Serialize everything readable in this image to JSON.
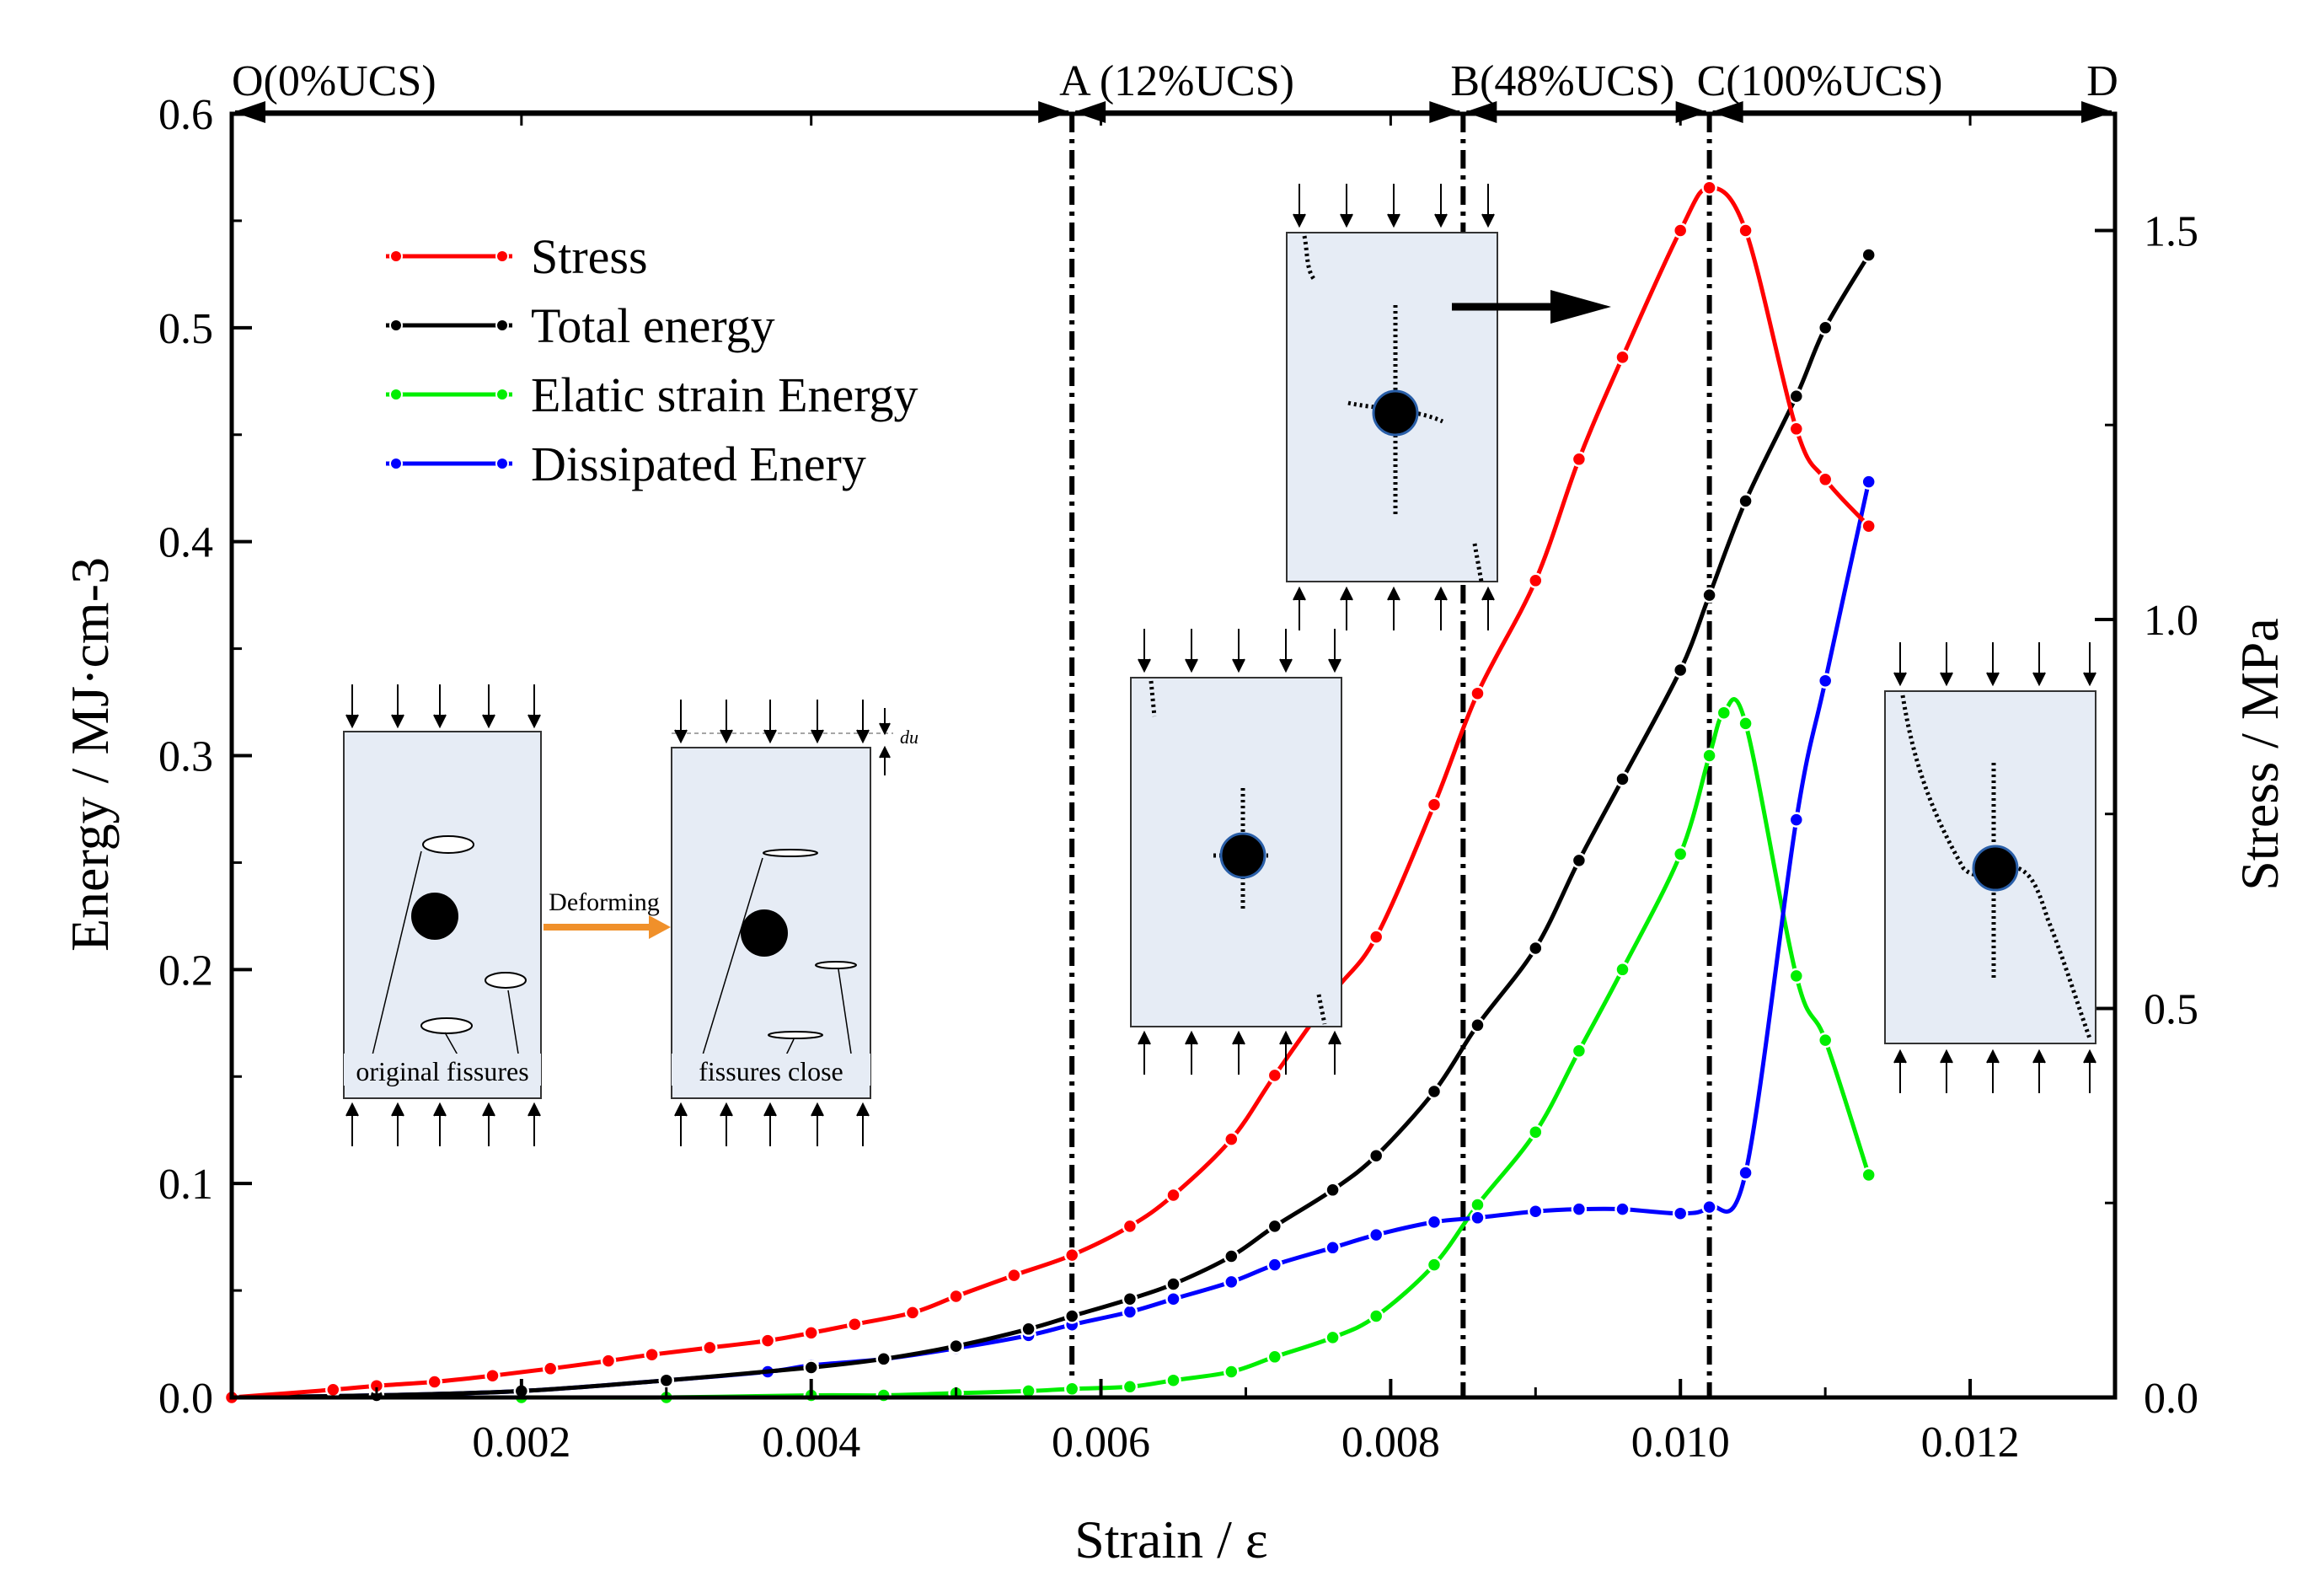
{
  "chart_data": {
    "type": "line",
    "xlabel": "Strain / ε",
    "ylabel_left": "Energy / MJ·cm-3",
    "ylabel_right": "Stress / MPa",
    "xlim": [
      0,
      0.013
    ],
    "ylim_left": [
      0,
      0.6
    ],
    "ylim_right": [
      0,
      1.65
    ],
    "x_ticks": [
      "0.002",
      "0.004",
      "0.006",
      "0.008",
      "0.010",
      "0.012"
    ],
    "y_left_ticks": [
      "0.0",
      "0.1",
      "0.2",
      "0.3",
      "0.4",
      "0.5",
      "0.6"
    ],
    "y_right_ticks": [
      "0.0",
      "0.5",
      "1.0",
      "1.5"
    ],
    "grid": false,
    "legend_location": "upper-left",
    "stages": [
      {
        "label": "O(0%UCS)",
        "x": 0
      },
      {
        "label": "A (12%UCS)",
        "x": 0.0058
      },
      {
        "label": "B(48%UCS)",
        "x": 0.0085
      },
      {
        "label": "C(100%UCS)",
        "x": 0.0102
      },
      {
        "label": "D",
        "x": 0.013
      }
    ],
    "series": [
      {
        "name": "Stress",
        "axis": "right",
        "color": "#ff0000",
        "x": [
          0.0,
          0.0007,
          0.001,
          0.0014,
          0.0018,
          0.0022,
          0.0026,
          0.0029,
          0.0033,
          0.0037,
          0.004,
          0.0043,
          0.0047,
          0.005,
          0.0054,
          0.0058,
          0.0062,
          0.0065,
          0.0069,
          0.0072,
          0.0076,
          0.0079,
          0.0083,
          0.0086,
          0.009,
          0.0093,
          0.0096,
          0.01,
          0.0102,
          0.01045,
          0.0108,
          0.011,
          0.0113
        ],
        "values": [
          0.0,
          0.01,
          0.015,
          0.02,
          0.028,
          0.037,
          0.047,
          0.055,
          0.064,
          0.073,
          0.083,
          0.094,
          0.109,
          0.13,
          0.157,
          0.183,
          0.22,
          0.26,
          0.332,
          0.414,
          0.519,
          0.592,
          0.762,
          0.905,
          1.05,
          1.206,
          1.337,
          1.5,
          1.555,
          1.5,
          1.245,
          1.18,
          1.12
        ]
      },
      {
        "name": "Total energy",
        "axis": "left",
        "color": "#000000",
        "x": [
          0.0,
          0.001,
          0.002,
          0.003,
          0.004,
          0.0045,
          0.005,
          0.0055,
          0.0058,
          0.0062,
          0.0065,
          0.0069,
          0.0072,
          0.0076,
          0.0079,
          0.0083,
          0.0086,
          0.009,
          0.0093,
          0.0096,
          0.01,
          0.0102,
          0.01045,
          0.0108,
          0.011,
          0.0113
        ],
        "values": [
          0.0,
          0.001,
          0.003,
          0.008,
          0.014,
          0.018,
          0.024,
          0.032,
          0.038,
          0.046,
          0.053,
          0.066,
          0.08,
          0.097,
          0.113,
          0.143,
          0.174,
          0.21,
          0.251,
          0.289,
          0.34,
          0.375,
          0.419,
          0.468,
          0.5,
          0.534
        ]
      },
      {
        "name": "Elatic strain Energy",
        "axis": "left",
        "color": "#00ee00",
        "x": [
          0.0,
          0.002,
          0.003,
          0.004,
          0.0045,
          0.005,
          0.0055,
          0.0058,
          0.0062,
          0.0065,
          0.0069,
          0.0072,
          0.0076,
          0.0079,
          0.0083,
          0.0086,
          0.009,
          0.0093,
          0.0096,
          0.01,
          0.0102,
          0.0103,
          0.01045,
          0.0108,
          0.011,
          0.0113
        ],
        "values": [
          0.0,
          0.0,
          0.0,
          0.001,
          0.001,
          0.002,
          0.003,
          0.004,
          0.005,
          0.008,
          0.012,
          0.019,
          0.028,
          0.038,
          0.062,
          0.09,
          0.124,
          0.162,
          0.2,
          0.254,
          0.3,
          0.32,
          0.315,
          0.197,
          0.167,
          0.104
        ]
      },
      {
        "name": "Dissipated Enery",
        "axis": "left",
        "color": "#0000ff",
        "x": [
          0.0,
          0.001,
          0.002,
          0.003,
          0.0037,
          0.004,
          0.0045,
          0.005,
          0.0055,
          0.0058,
          0.0062,
          0.0065,
          0.0069,
          0.0072,
          0.0076,
          0.0079,
          0.0083,
          0.0086,
          0.009,
          0.0093,
          0.0096,
          0.01,
          0.0102,
          0.01045,
          0.0108,
          0.011,
          0.0113
        ],
        "values": [
          0.0,
          0.001,
          0.003,
          0.008,
          0.012,
          0.015,
          0.018,
          0.023,
          0.029,
          0.034,
          0.04,
          0.046,
          0.054,
          0.062,
          0.07,
          0.076,
          0.082,
          0.084,
          0.087,
          0.088,
          0.088,
          0.086,
          0.089,
          0.105,
          0.27,
          0.335,
          0.428
        ]
      }
    ],
    "annotations": {
      "arrow_label": "Deforming",
      "du_label": "du",
      "original_fissures": "original fissures",
      "fissures_close": "fissures close"
    }
  }
}
